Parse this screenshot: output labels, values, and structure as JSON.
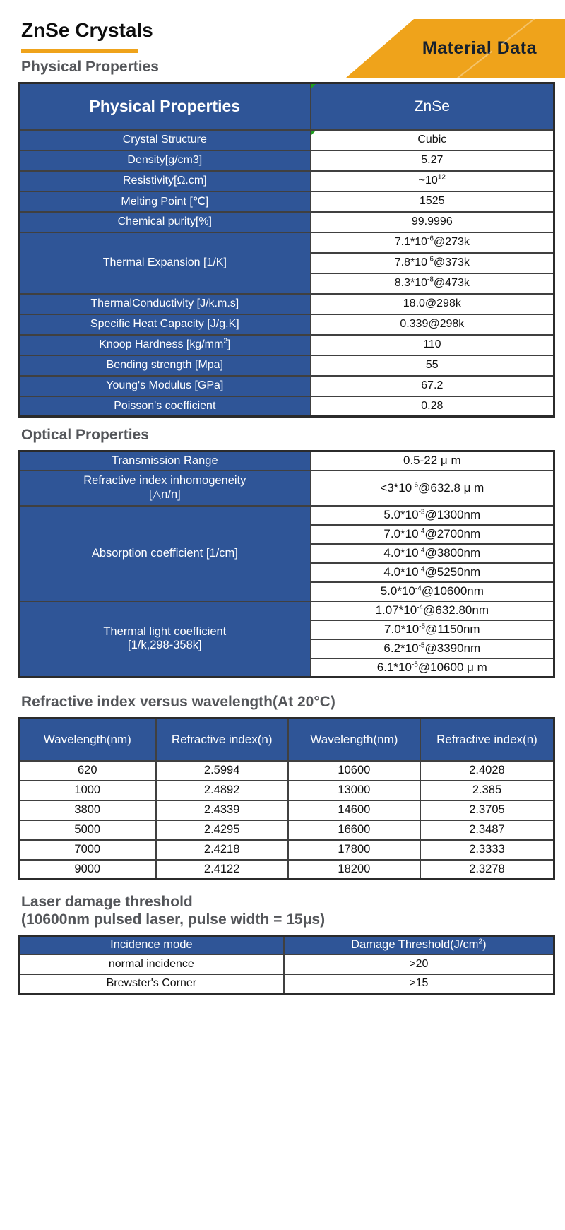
{
  "header": {
    "title": "ZnSe Crystals",
    "badge": "Material Data"
  },
  "colors": {
    "table_blue": "#2f5597",
    "accent_orange": "#efa31b",
    "heading_gray": "#54565a",
    "badge_text": "#16202e"
  },
  "physical": {
    "heading": "Physical Properties",
    "table": {
      "header_label": "Physical Properties",
      "header_value": "ZnSe",
      "rows": [
        {
          "label": "Crystal Structure",
          "value": "Cubic"
        },
        {
          "label": "Density[g/cm3]",
          "value": "5.27"
        },
        {
          "label": "Resistivity[Ω.cm]",
          "value": "~10^12"
        },
        {
          "label": "Melting Point [℃]",
          "value": "1525"
        },
        {
          "label": "Chemical purity[%]",
          "value": "99.9996"
        },
        {
          "label": "Thermal Expansion [1/K]",
          "values": [
            "7.1*10^-6@273k",
            "7.8*10^-6@373k",
            "8.3*10^-8@473k"
          ]
        },
        {
          "label": "ThermalConductivity [J/k.m.s]",
          "value": "18.0@298k"
        },
        {
          "label": "Specific Heat Capacity [J/g.K]",
          "value": "0.339@298k"
        },
        {
          "label": "Knoop Hardness [kg/mm^2]",
          "value": "110"
        },
        {
          "label": "Bending strength [Mpa]",
          "value": "55"
        },
        {
          "label": "Young's Modulus [GPa]",
          "value": "67.2"
        },
        {
          "label": "Poisson's coefficient",
          "value": "0.28"
        }
      ]
    }
  },
  "optical": {
    "heading": "Optical Properties",
    "table": {
      "rows": [
        {
          "label": "Transmission Range",
          "value": "0.5-22 μ m"
        },
        {
          "label": "Refractive index inhomogeneity\n[△n/n]",
          "value": "<3*10^-6@632.8 μ m"
        },
        {
          "label": "Absorption coefficient [1/cm]",
          "values": [
            "5.0*10^-3@1300nm",
            "7.0*10^-4@2700nm",
            "4.0*10^-4@3800nm",
            "4.0*10^-4@5250nm",
            "5.0*10^-4@10600nm"
          ]
        },
        {
          "label": "Thermal light coefficient\n[1/k,298-358k]",
          "values": [
            "1.07*10^-4@632.80nm",
            "7.0*10^-5@1150nm",
            "6.2*10^-5@3390nm",
            "6.1*10^-5@10600 μ m"
          ]
        }
      ]
    }
  },
  "refractive": {
    "heading": "Refractive index versus wavelength(At 20°C)",
    "table": {
      "headers": [
        "Wavelength(nm)",
        "Refractive index(n)",
        "Wavelength(nm)",
        "Refractive index(n)"
      ],
      "rows": [
        [
          "620",
          "2.5994",
          "10600",
          "2.4028"
        ],
        [
          "1000",
          "2.4892",
          "13000",
          "2.385"
        ],
        [
          "3800",
          "2.4339",
          "14600",
          "2.3705"
        ],
        [
          "5000",
          "2.4295",
          "16600",
          "2.3487"
        ],
        [
          "7000",
          "2.4218",
          "17800",
          "2.3333"
        ],
        [
          "9000",
          "2.4122",
          "18200",
          "2.3278"
        ]
      ]
    }
  },
  "laser": {
    "heading_line1": "Laser damage threshold",
    "heading_line2": "(10600nm pulsed laser, pulse width = 15μs)",
    "table": {
      "headers": [
        "Incidence mode",
        "Damage Threshold(J/cm^2)"
      ],
      "rows": [
        [
          "normal incidence",
          ">20"
        ],
        [
          "Brewster's Corner",
          ">15"
        ]
      ]
    }
  }
}
